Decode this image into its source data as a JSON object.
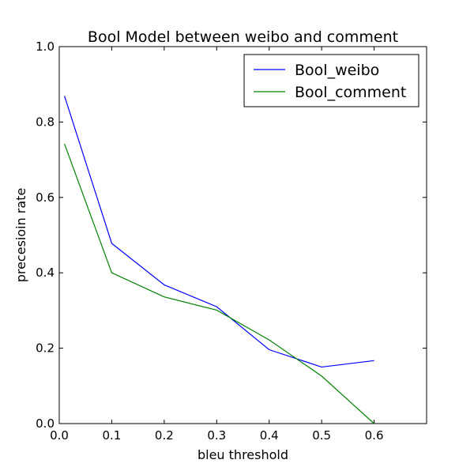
{
  "chart_data": {
    "type": "line",
    "title": "Bool Model between weibo and comment",
    "xlabel": "bleu threshold",
    "ylabel": "precesioin rate",
    "xlim": [
      0.0,
      0.7
    ],
    "ylim": [
      0.0,
      1.0
    ],
    "xticks": [
      "0.0",
      "0.1",
      "0.2",
      "0.3",
      "0.4",
      "0.5",
      "0.6"
    ],
    "yticks": [
      "0.0",
      "0.2",
      "0.4",
      "0.6",
      "0.8",
      "1.0"
    ],
    "grid": false,
    "legend_position": "top-right",
    "series": [
      {
        "name": "Bool_weibo",
        "color": "#0000ff",
        "x": [
          0.01,
          0.1,
          0.2,
          0.3,
          0.4,
          0.5,
          0.6
        ],
        "y": [
          0.869,
          0.478,
          0.368,
          0.31,
          0.196,
          0.15,
          0.167
        ]
      },
      {
        "name": "Bool_comment",
        "color": "#008000",
        "x": [
          0.01,
          0.1,
          0.2,
          0.3,
          0.4,
          0.5,
          0.6
        ],
        "y": [
          0.742,
          0.4,
          0.336,
          0.301,
          0.222,
          0.126,
          0.0
        ]
      }
    ]
  }
}
